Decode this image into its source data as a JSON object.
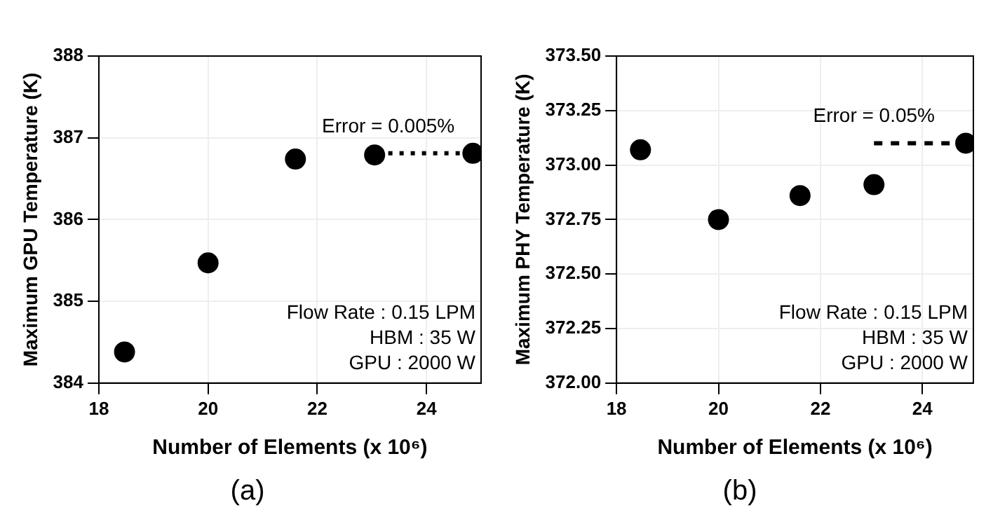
{
  "chart_data": [
    {
      "type": "scatter",
      "title": "(a)",
      "xlabel": "Number of Elements (x 10⁶)",
      "ylabel": "Maximum GPU Temperature (K)",
      "xlim": [
        18,
        25
      ],
      "xticks": [
        18,
        20,
        22,
        24
      ],
      "ylim": [
        384,
        388
      ],
      "yticks": [
        384,
        385,
        386,
        387,
        388
      ],
      "grid": true,
      "series": [
        {
          "marker": "circle",
          "color": "#000000",
          "x": [
            18.47,
            20.0,
            21.6,
            23.05,
            24.85
          ],
          "values": [
            384.38,
            385.47,
            386.74,
            386.79,
            386.81
          ]
        },
        {
          "type": "line",
          "line_style": "dotted",
          "color": "#000000",
          "x": [
            23.3,
            24.85
          ],
          "values": [
            386.81,
            386.81
          ]
        }
      ],
      "annotations": [
        {
          "text": "Error = 0.005%",
          "x": 23.3,
          "y": 386.81
        },
        "Flow Rate : 0.15 LPM",
        "HBM : 35 W",
        "GPU : 2000 W"
      ]
    },
    {
      "type": "scatter",
      "title": "(b)",
      "xlabel": "Number of Elements (x 10⁶)",
      "ylabel": "Maximum PHY Temperature (K)",
      "xlim": [
        18,
        25
      ],
      "xticks": [
        18,
        20,
        22,
        24
      ],
      "ylim": [
        372,
        373.5
      ],
      "yticks": [
        {
          "value": 372,
          "label": "372.00"
        },
        {
          "value": 372.25,
          "label": "372.25"
        },
        {
          "value": 372.5,
          "label": "372.50"
        },
        {
          "value": 372.75,
          "label": "372.75"
        },
        {
          "value": 373,
          "label": "373.00"
        },
        {
          "value": 373.25,
          "label": "373.25"
        },
        {
          "value": 373.5,
          "label": "373.50"
        }
      ],
      "grid": true,
      "series": [
        {
          "marker": "circle",
          "color": "#000000",
          "x": [
            18.47,
            20.0,
            21.6,
            23.05,
            24.85
          ],
          "values": [
            373.07,
            372.75,
            372.86,
            372.91,
            373.1
          ]
        },
        {
          "type": "line",
          "line_style": "dashed",
          "color": "#000000",
          "x": [
            23.05,
            24.85
          ],
          "values": [
            373.1,
            373.1
          ]
        }
      ],
      "annotations": [
        {
          "text": "Error = 0.05%",
          "x": 23.05,
          "y": 373.1
        },
        "Flow Rate : 0.15 LPM",
        "HBM : 35 W",
        "GPU : 2000 W"
      ]
    }
  ]
}
